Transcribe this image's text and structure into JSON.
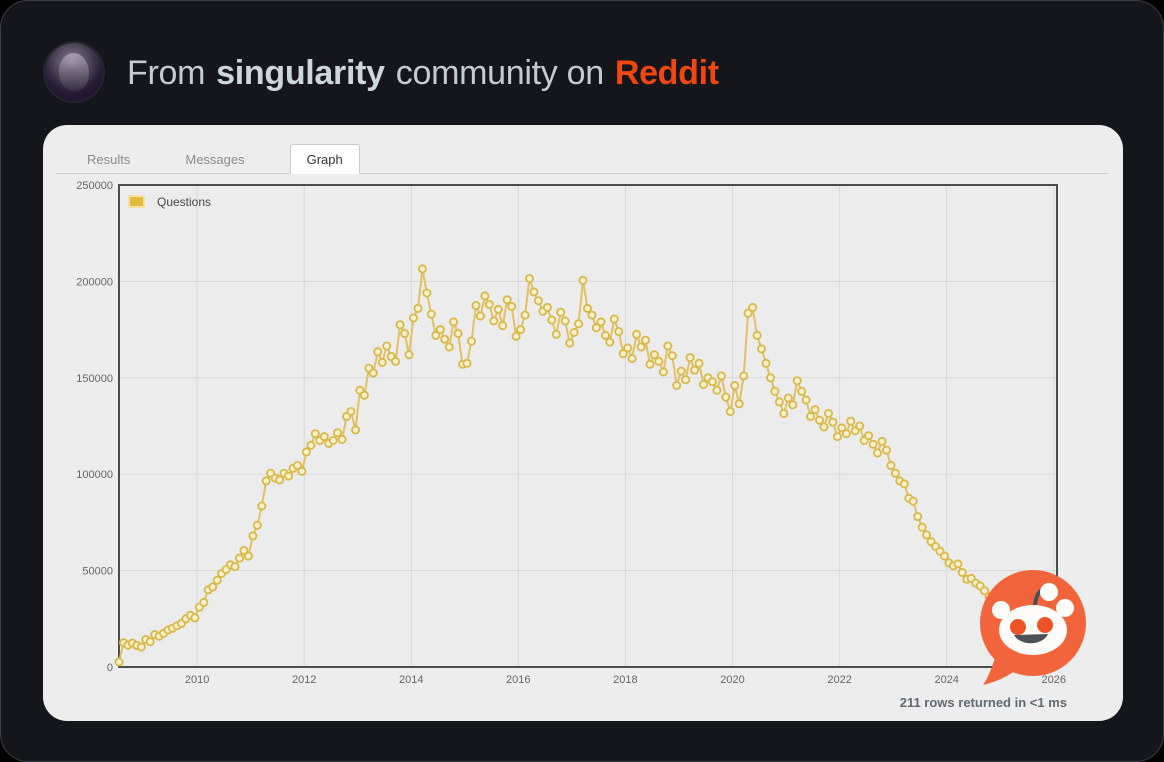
{
  "header": {
    "title_prefix": "From",
    "community": "singularity",
    "title_middle": "community on",
    "brand": "Reddit"
  },
  "tabs": [
    {
      "label": "Results",
      "active": false
    },
    {
      "label": "Messages",
      "active": false
    },
    {
      "label": "Graph",
      "active": true
    }
  ],
  "status_bar": {
    "text": "211 rows returned in <1 ms"
  },
  "colors": {
    "brand_orange": "#F0470F",
    "reddit_logo_orange": "#F2653C",
    "line": "#E2C162",
    "marker_fill": "#F8F0CF",
    "marker_stroke": "#D9B848",
    "legend_swatch": "#E3B93E"
  },
  "chart_data": {
    "type": "line",
    "title": "",
    "xlabel": "",
    "ylabel": "",
    "legend_position": "top-left",
    "grid": true,
    "xlim": [
      2008.5417,
      2026.06
    ],
    "ylim": [
      0,
      250000
    ],
    "xticks": [
      2010,
      2012,
      2014,
      2016,
      2018,
      2020,
      2022,
      2024,
      2026
    ],
    "yticks": [
      0,
      50000,
      100000,
      150000,
      200000,
      250000
    ],
    "x_start": "2008-07",
    "x_step_months": 1,
    "series": [
      {
        "name": "Questions",
        "values": [
          2600,
          12600,
          11300,
          12400,
          11200,
          10300,
          14200,
          13100,
          16800,
          16000,
          17500,
          19200,
          20100,
          21400,
          22600,
          25000,
          26800,
          25500,
          31000,
          33500,
          40000,
          41500,
          45000,
          48500,
          50500,
          53000,
          52000,
          56500,
          60500,
          57500,
          68000,
          73500,
          83500,
          96500,
          100500,
          98000,
          97000,
          100500,
          99000,
          103000,
          104500,
          101500,
          111500,
          115000,
          121000,
          117500,
          119500,
          116000,
          117500,
          121500,
          118000,
          130000,
          132500,
          123000,
          143500,
          141000,
          155000,
          152500,
          163500,
          158000,
          166500,
          161000,
          158500,
          177500,
          173000,
          162000,
          181000,
          186000,
          206500,
          194000,
          183000,
          172000,
          175000,
          170000,
          166000,
          179000,
          173000,
          157000,
          157500,
          169000,
          187500,
          182000,
          192500,
          188000,
          179500,
          185500,
          177000,
          190500,
          187000,
          171500,
          175000,
          182500,
          201500,
          194500,
          190000,
          184500,
          186500,
          180000,
          172500,
          184000,
          179500,
          168000,
          173500,
          178000,
          200500,
          186000,
          182500,
          176000,
          179000,
          172000,
          168500,
          180500,
          174000,
          162500,
          165500,
          160000,
          172500,
          166000,
          169500,
          157000,
          162000,
          158500,
          153000,
          166500,
          161500,
          146000,
          153500,
          149000,
          160500,
          154000,
          157500,
          146500,
          150000,
          148000,
          143500,
          151000,
          140000,
          132500,
          146000,
          136500,
          151000,
          183500,
          186500,
          172000,
          165000,
          157500,
          150000,
          143000,
          137500,
          131500,
          139500,
          136000,
          148500,
          143000,
          138500,
          130000,
          133500,
          128000,
          124500,
          131500,
          127000,
          119500,
          124000,
          121000,
          127500,
          122500,
          125000,
          117500,
          120000,
          115500,
          111000,
          117000,
          112500,
          104500,
          100500,
          96500,
          95000,
          87500,
          86000,
          78000,
          72500,
          68500,
          65000,
          62500,
          60000,
          57500,
          54000,
          52500,
          53500,
          49000,
          45500,
          46000,
          43500,
          42000,
          39500,
          36500,
          33500,
          31000,
          27500,
          25000,
          24000,
          21500,
          19500,
          17500,
          16000,
          14500,
          13000,
          11500,
          10500,
          9500,
          8500
        ]
      }
    ]
  }
}
